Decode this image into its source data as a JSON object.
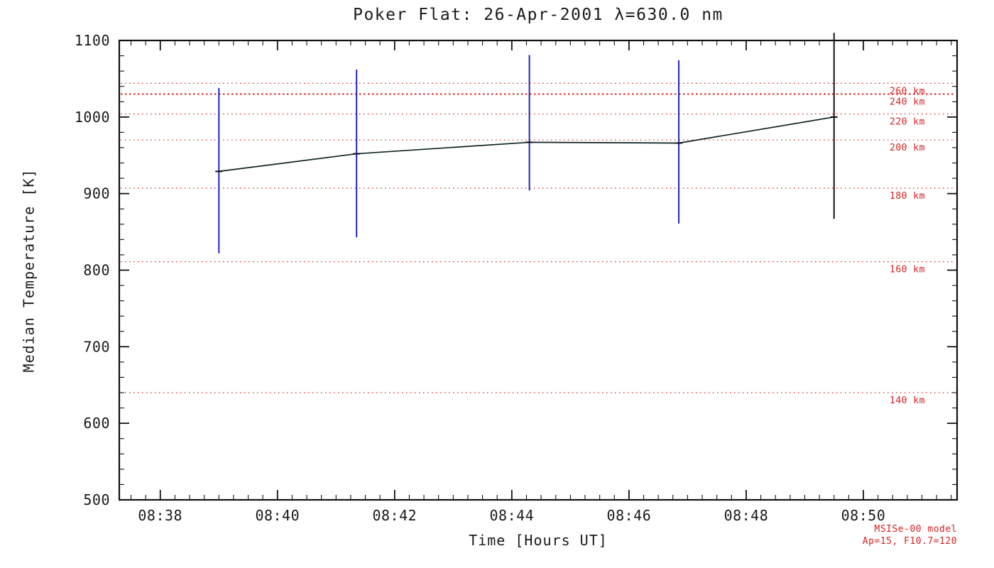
{
  "chart_data": {
    "type": "line",
    "title": "Poker Flat: 26-Apr-2001 λ=630.0 nm",
    "xlabel": "Time [Hours UT]",
    "ylabel": "Median Temperature [K]",
    "grid": false,
    "legend": false,
    "colors": {
      "axis": "#111111",
      "tick_text": "#1a1a1a",
      "data_line": "#0d2424",
      "error_bar_blue": "#2323c4",
      "error_bar_black": "#151515",
      "reference_red": "#d82020"
    },
    "x_axis": {
      "units": "minutes after 08:00 UT",
      "min_minutes": 37.3,
      "max_minutes": 51.6,
      "major_ticks": [
        {
          "value": 38,
          "label": "08:38"
        },
        {
          "value": 40,
          "label": "08:40"
        },
        {
          "value": 42,
          "label": "08:42"
        },
        {
          "value": 44,
          "label": "08:44"
        },
        {
          "value": 46,
          "label": "08:46"
        },
        {
          "value": 48,
          "label": "08:48"
        },
        {
          "value": 50,
          "label": "08:50"
        }
      ],
      "minor_step_minutes": 0.25
    },
    "y_axis": {
      "min": 500,
      "max": 1100,
      "major_step": 100,
      "minor_step": 20,
      "major_ticks": [
        {
          "value": 500,
          "label": "500"
        },
        {
          "value": 600,
          "label": "600"
        },
        {
          "value": 700,
          "label": "700"
        },
        {
          "value": 800,
          "label": "800"
        },
        {
          "value": 900,
          "label": "900"
        },
        {
          "value": 1000,
          "label": "1000"
        },
        {
          "value": 1100,
          "label": "1100"
        }
      ]
    },
    "series": [
      {
        "name": "median-temperature",
        "marker": "horizontal-dash",
        "points": [
          {
            "time_minutes": 39.0,
            "temp_k": 929,
            "err_low_k": 822,
            "err_high_k": 1038,
            "bar_color": "#2323c4"
          },
          {
            "time_minutes": 41.35,
            "temp_k": 952,
            "err_low_k": 843,
            "err_high_k": 1062,
            "bar_color": "#2323c4"
          },
          {
            "time_minutes": 44.3,
            "temp_k": 967,
            "err_low_k": 904,
            "err_high_k": 1081,
            "bar_color": "#2323c4"
          },
          {
            "time_minutes": 46.85,
            "temp_k": 966,
            "err_low_k": 861,
            "err_high_k": 1074,
            "bar_color": "#2323c4"
          },
          {
            "time_minutes": 49.5,
            "temp_k": 1000,
            "err_low_k": 867,
            "err_high_k": 1110,
            "bar_color": "#151515"
          }
        ]
      }
    ],
    "reference_lines": [
      {
        "label": "260 km",
        "temp_k": 1044,
        "bold": false
      },
      {
        "label": "240 km",
        "temp_k": 1030,
        "bold": true
      },
      {
        "label": "220 km",
        "temp_k": 1004,
        "bold": false
      },
      {
        "label": "200 km",
        "temp_k": 970,
        "bold": false
      },
      {
        "label": "180 km",
        "temp_k": 907,
        "bold": false
      },
      {
        "label": "160 km",
        "temp_k": 811,
        "bold": false
      },
      {
        "label": "140 km",
        "temp_k": 640,
        "bold": false
      }
    ],
    "annotations": [
      "MSISe-00 model",
      "Ap=15, F10.7=120"
    ]
  }
}
